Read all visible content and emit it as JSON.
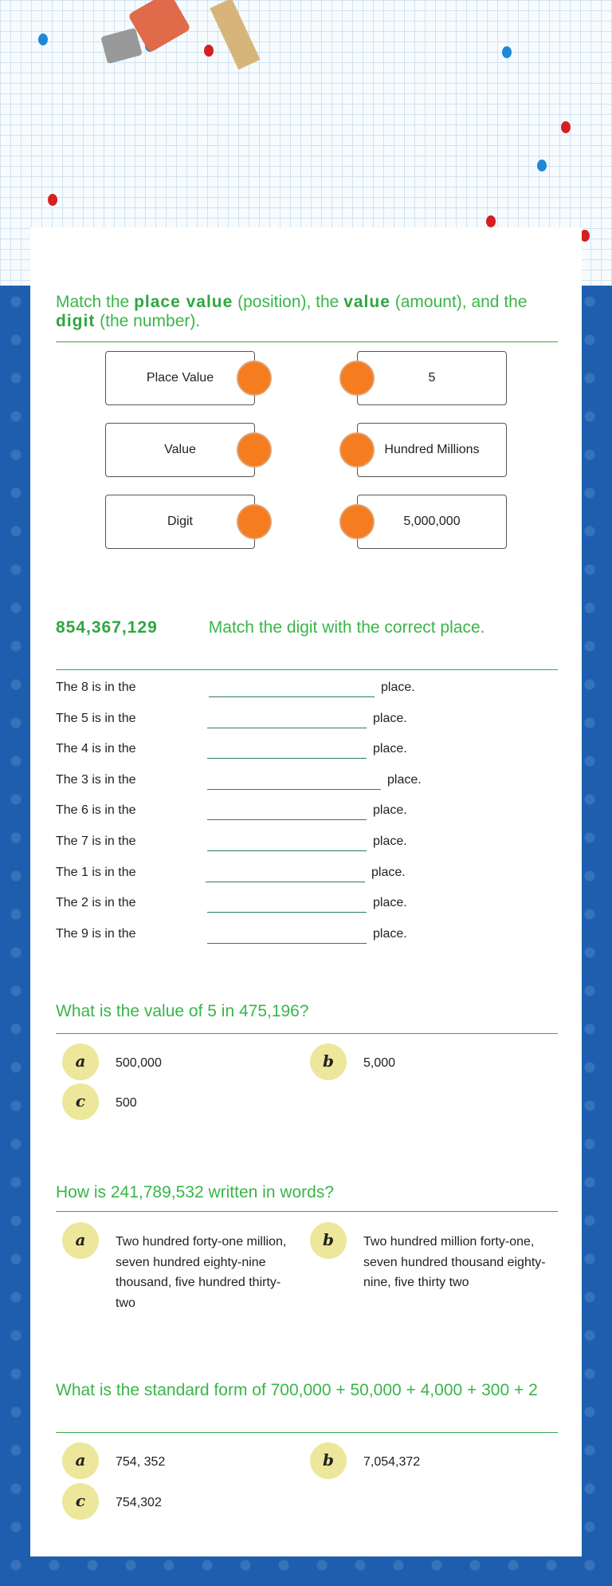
{
  "colors": {
    "heading": "#3ab54a",
    "knob": "#f57c1f",
    "badge": "#ece79a",
    "background": "#1d5fae"
  },
  "q1": {
    "heading_parts": [
      "Match the ",
      "place value",
      " (position), the ",
      "value",
      " (amount), and the ",
      "digit",
      " (the number)."
    ],
    "left": [
      "Place Value",
      "Value",
      "Digit"
    ],
    "right": [
      "5",
      "Hundred Millions",
      "5,000,000"
    ]
  },
  "q2": {
    "number": "854,367,129",
    "instruction": "Match the digit with the correct place.",
    "rows": [
      {
        "label": "The 8 is in the",
        "suffix": "place."
      },
      {
        "label": "The 5 is in the",
        "suffix": "place."
      },
      {
        "label": "The 4 is in the",
        "suffix": "place."
      },
      {
        "label": "The 3 is in the",
        "suffix": "place."
      },
      {
        "label": "The 6 is in the",
        "suffix": "place."
      },
      {
        "label": "The 7 is in the",
        "suffix": "place."
      },
      {
        "label": "The 1 is in the",
        "suffix": "place."
      },
      {
        "label": "The 2 is in the",
        "suffix": "place."
      },
      {
        "label": "The 9 is in the",
        "suffix": "place."
      }
    ]
  },
  "q3": {
    "question": "What is the value of 5 in 475,196?",
    "options": [
      {
        "letter": "a",
        "text": "500,000"
      },
      {
        "letter": "b",
        "text": "5,000"
      },
      {
        "letter": "c",
        "text": "500"
      }
    ]
  },
  "q4": {
    "question": "How is 241,789,532 written in words?",
    "options": [
      {
        "letter": "a",
        "text": "Two hundred forty-one million, seven hundred eighty-nine thousand, five hundred thirty-two"
      },
      {
        "letter": "b",
        "text": "Two hundred million forty-one, seven hundred thousand eighty-nine, five thirty two"
      }
    ]
  },
  "q5": {
    "question": "What is the standard form of 700,000 + 50,000 + 4,000 + 300 + 2",
    "options": [
      {
        "letter": "a",
        "text": "754, 352"
      },
      {
        "letter": "b",
        "text": "7,054,372"
      },
      {
        "letter": "c",
        "text": "754,302"
      }
    ]
  }
}
